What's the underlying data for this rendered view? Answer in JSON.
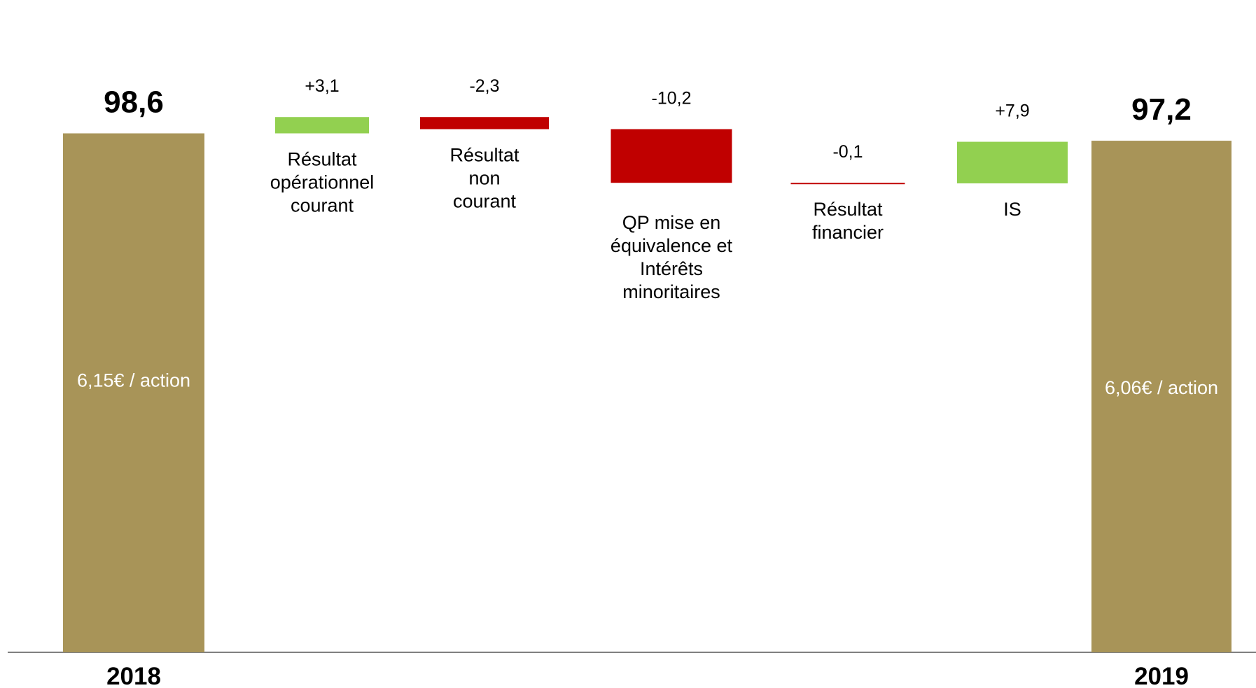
{
  "chart_data": {
    "type": "waterfall",
    "colors": {
      "total": "#A89458",
      "increase": "#92D050",
      "decrease": "#C00000",
      "axis": "#808080"
    },
    "bars": [
      {
        "kind": "total",
        "value": 98.6,
        "value_label": "98,6",
        "inner_label": "6,15€ / action",
        "axis_label": "2018"
      },
      {
        "kind": "delta",
        "value": 3.1,
        "value_label": "+3,1",
        "category": [
          "Résultat",
          "opérationnel",
          "courant"
        ]
      },
      {
        "kind": "delta",
        "value": -2.3,
        "value_label": "-2,3",
        "category": [
          "Résultat",
          "non",
          "courant"
        ]
      },
      {
        "kind": "delta",
        "value": -10.2,
        "value_label": "-10,2",
        "category": [
          "QP mise en",
          "équivalence et",
          "Intérêts",
          "minoritaires"
        ]
      },
      {
        "kind": "delta",
        "value": -0.1,
        "value_label": "-0,1",
        "category": [
          "Résultat",
          "financier"
        ]
      },
      {
        "kind": "delta",
        "value": 7.9,
        "value_label": "+7,9",
        "category": [
          "IS"
        ]
      },
      {
        "kind": "total",
        "value": 97.2,
        "value_label": "97,2",
        "inner_label": "6,06€ / action",
        "axis_label": "2019"
      }
    ]
  }
}
